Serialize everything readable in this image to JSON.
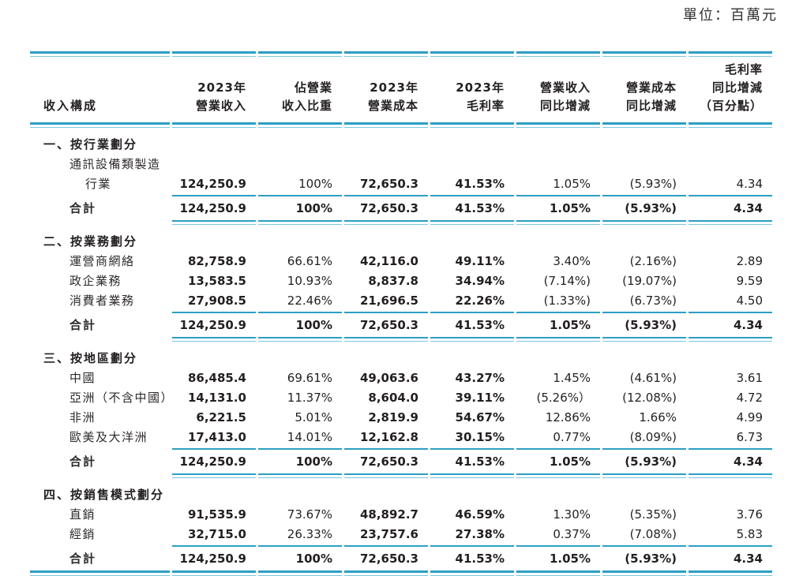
{
  "unit_label": "單位：百萬元",
  "colors": {
    "rule_strong": "#2b9ec6",
    "rule_light": "#7cc7e0",
    "text": "#231f20"
  },
  "table": {
    "columns": [
      {
        "lines": [
          "收入構成"
        ]
      },
      {
        "lines": [
          "2023年",
          "營業收入"
        ]
      },
      {
        "lines": [
          "佔營業",
          "收入比重"
        ]
      },
      {
        "lines": [
          "2023年",
          "營業成本"
        ]
      },
      {
        "lines": [
          "2023年",
          "毛利率"
        ]
      },
      {
        "lines": [
          "營業收入",
          "同比增減"
        ]
      },
      {
        "lines": [
          "營業成本",
          "同比增減"
        ]
      },
      {
        "lines": [
          "毛利率",
          "同比增減",
          "（百分點）"
        ]
      }
    ],
    "total_label": "合計",
    "total_values": [
      "124,250.9",
      "100%",
      "72,650.3",
      "41.53%",
      "1.05%",
      "(5.93%)",
      "4.34"
    ],
    "sections": [
      {
        "heading": "一、按行業劃分",
        "rows": [
          {
            "label_lines": [
              "通訊設備類製造",
              "行業"
            ],
            "values": [
              "124,250.9",
              "100%",
              "72,650.3",
              "41.53%",
              "1.05%",
              "(5.93%)",
              "4.34"
            ]
          }
        ]
      },
      {
        "heading": "二、按業務劃分",
        "rows": [
          {
            "label_lines": [
              "運營商網絡"
            ],
            "values": [
              "82,758.9",
              "66.61%",
              "42,116.0",
              "49.11%",
              "3.40%",
              "(2.16%)",
              "2.89"
            ]
          },
          {
            "label_lines": [
              "政企業務"
            ],
            "values": [
              "13,583.5",
              "10.93%",
              "8,837.8",
              "34.94%",
              "(7.14%)",
              "(19.07%)",
              "9.59"
            ]
          },
          {
            "label_lines": [
              "消費者業務"
            ],
            "values": [
              "27,908.5",
              "22.46%",
              "21,696.5",
              "22.26%",
              "(1.33%)",
              "(6.73%)",
              "4.50"
            ]
          }
        ]
      },
      {
        "heading": "三、按地區劃分",
        "rows": [
          {
            "label_lines": [
              "中國"
            ],
            "values": [
              "86,485.4",
              "69.61%",
              "49,063.6",
              "43.27%",
              "1.45%",
              "(4.61%)",
              "3.61"
            ]
          },
          {
            "label_lines": [
              "亞洲（不含中國）"
            ],
            "values": [
              "14,131.0",
              "11.37%",
              "8,604.0",
              "39.11%",
              "(5.26%）",
              "(12.08%)",
              "4.72"
            ]
          },
          {
            "label_lines": [
              "非洲"
            ],
            "values": [
              "6,221.5",
              "5.01%",
              "2,819.9",
              "54.67%",
              "12.86%",
              "1.66%",
              "4.99"
            ]
          },
          {
            "label_lines": [
              "歐美及大洋洲"
            ],
            "values": [
              "17,413.0",
              "14.01%",
              "12,162.8",
              "30.15%",
              "0.77%",
              "(8.09%)",
              "6.73"
            ]
          }
        ]
      },
      {
        "heading": "四、按銷售模式劃分",
        "rows": [
          {
            "label_lines": [
              "直銷"
            ],
            "values": [
              "91,535.9",
              "73.67%",
              "48,892.7",
              "46.59%",
              "1.30%",
              "(5.35%)",
              "3.76"
            ]
          },
          {
            "label_lines": [
              "經銷"
            ],
            "values": [
              "32,715.0",
              "26.33%",
              "23,757.6",
              "27.38%",
              "0.37%",
              "(7.08%)",
              "5.83"
            ]
          }
        ]
      }
    ]
  }
}
